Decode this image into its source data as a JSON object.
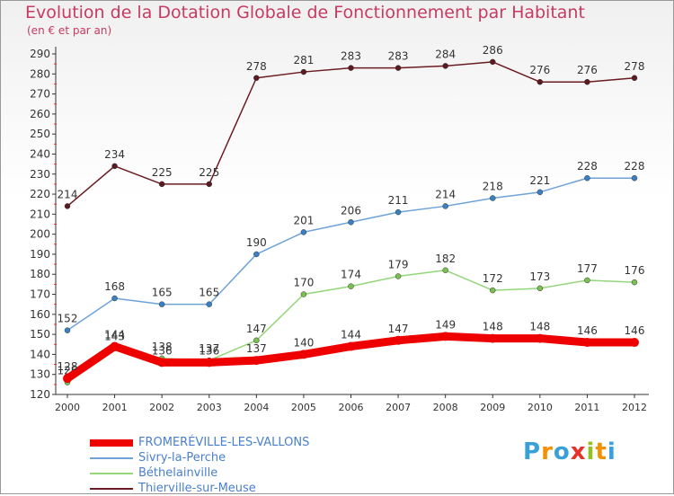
{
  "title": "Evolution de la Dotation Globale de Fonctionnement par Habitant",
  "subtitle": "(en € et par an)",
  "logo_text": "Proxiti",
  "chart_data": {
    "type": "line",
    "title": "Evolution de la Dotation Globale de Fonctionnement par Habitant",
    "subtitle": "(en € et par an)",
    "x": [
      2000,
      2001,
      2002,
      2003,
      2004,
      2005,
      2006,
      2007,
      2008,
      2009,
      2010,
      2011,
      2012
    ],
    "ylim": [
      120,
      290
    ],
    "yticks": [
      120,
      130,
      140,
      150,
      160,
      170,
      180,
      190,
      200,
      210,
      220,
      230,
      240,
      250,
      260,
      270,
      280,
      290
    ],
    "grid": false,
    "legend_position": "bottom-left",
    "series": [
      {
        "name": "Thierville-sur-Meuse",
        "color": "#6b1c22",
        "marker": "#5a1a1e",
        "values": [
          214,
          234,
          225,
          225,
          278,
          281,
          283,
          283,
          284,
          286,
          276,
          276,
          278
        ]
      },
      {
        "name": "Sivry-la-Perche",
        "color": "#6fa3d8",
        "marker": "#3b7fc4",
        "values": [
          152,
          168,
          165,
          165,
          190,
          201,
          206,
          211,
          214,
          218,
          221,
          228,
          228
        ]
      },
      {
        "name": "Béthelainville",
        "color": "#94d67a",
        "marker": "#7ac04e",
        "values": [
          126,
          143,
          138,
          137,
          147,
          170,
          174,
          179,
          182,
          172,
          173,
          177,
          176
        ]
      },
      {
        "name": "FROMERÉVILLE-LES-VALLONS",
        "color": "#ee0000",
        "marker": "#ee0000",
        "thick": true,
        "values": [
          128,
          144,
          136,
          136,
          137,
          140,
          144,
          147,
          149,
          148,
          148,
          146,
          146
        ]
      }
    ]
  }
}
